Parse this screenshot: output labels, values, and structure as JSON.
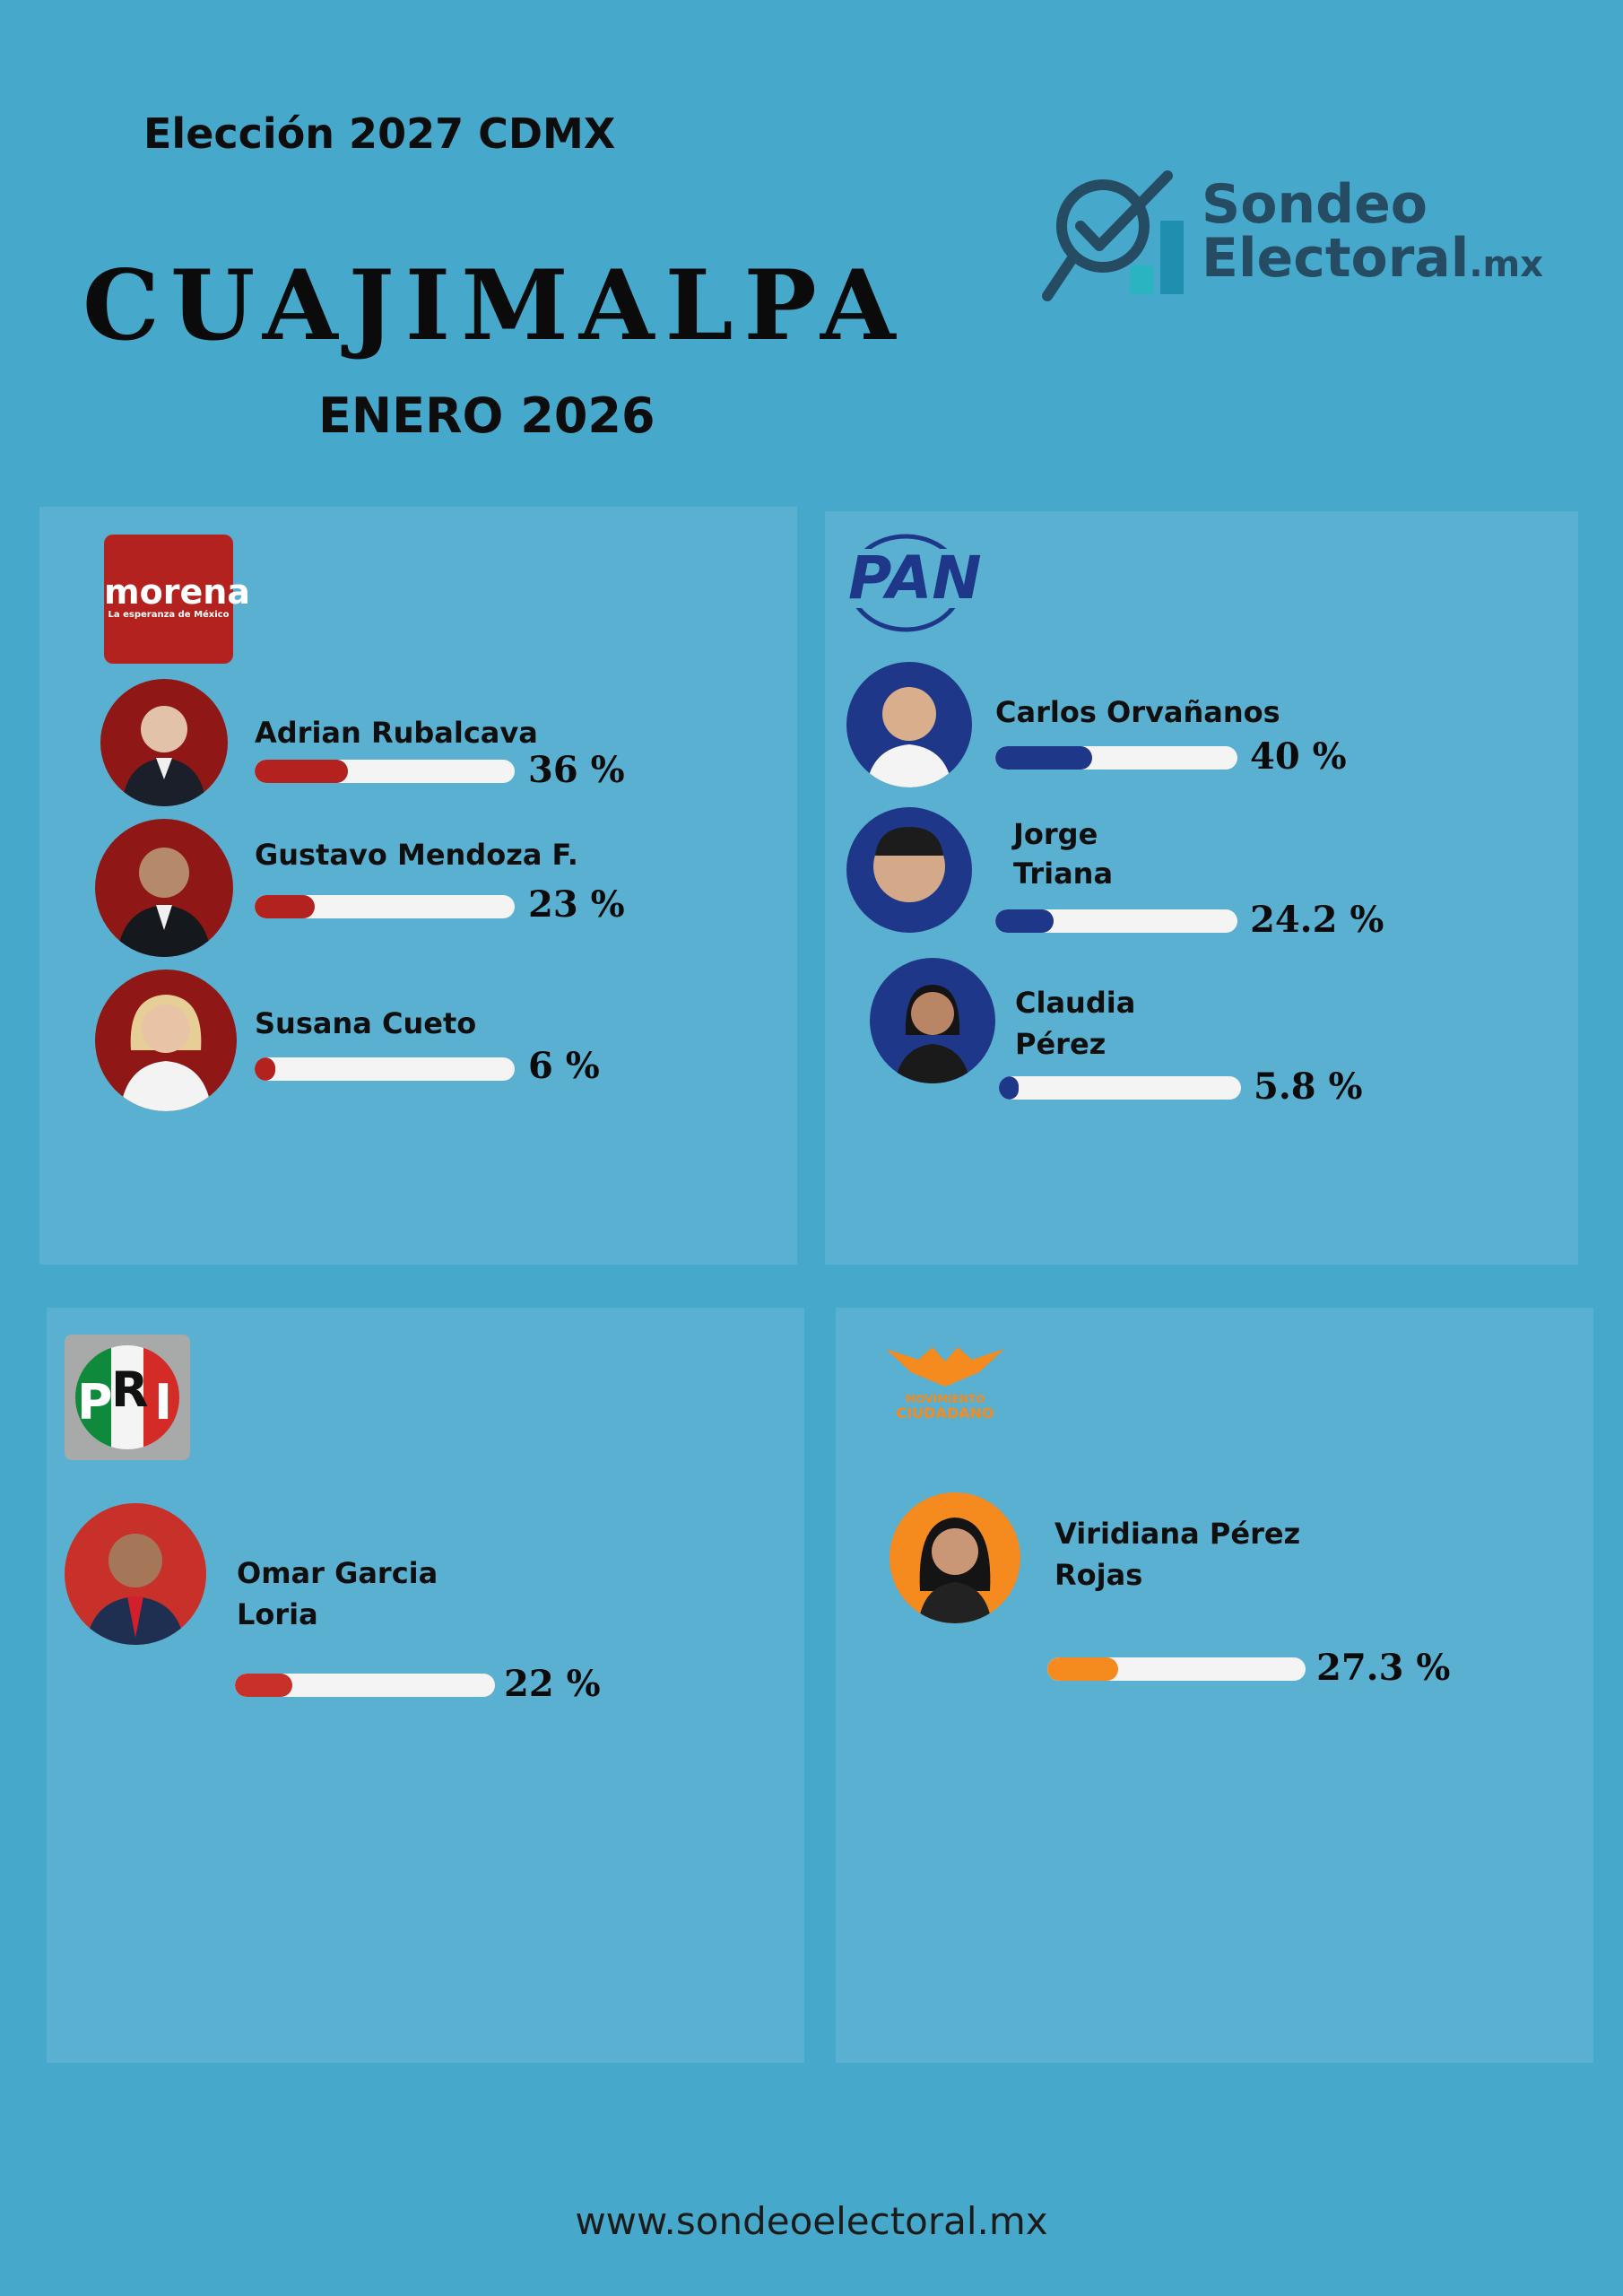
{
  "header": {
    "election": "Elección 2027 CDMX",
    "title": "CUAJIMALPA",
    "date": "ENERO 2026"
  },
  "brand": {
    "line1": "Sondeo",
    "line2": "Electoral",
    "line2_suffix": ".mx"
  },
  "colors": {
    "background": "#46a8cb",
    "panel": "#59b0d0",
    "morena": "#b3221f",
    "pan": "#1e3789",
    "pri": "#c8312a",
    "mc": "#f58a1f"
  },
  "panels": {
    "morena": {
      "logo_text": "morena",
      "logo_subtext": "La esperanza de México",
      "candidates": [
        {
          "name": "Adrian Rubalcava",
          "percent_label": "36 %",
          "value": 36
        },
        {
          "name": "Gustavo Mendoza F.",
          "percent_label": "23 %",
          "value": 23
        },
        {
          "name": "Susana Cueto",
          "percent_label": "6 %",
          "value": 6
        }
      ]
    },
    "pan": {
      "logo_text": "PAN",
      "candidates": [
        {
          "name": "Carlos Orvañanos",
          "percent_label": "40 %",
          "value": 40
        },
        {
          "name": "Jorge",
          "name2": "Triana",
          "percent_label": "24.2 %",
          "value": 24.2
        },
        {
          "name": "Claudia",
          "name2": "Pérez",
          "percent_label": "5.8 %",
          "value": 5.8
        }
      ]
    },
    "pri": {
      "logo_letters": [
        "P",
        "R",
        "I"
      ],
      "candidates": [
        {
          "name": "Omar Garcia",
          "name2": "Loria",
          "percent_label": "22 %",
          "value": 22
        }
      ]
    },
    "mc": {
      "logo_line1": "MOVIMIENTO",
      "logo_line2": "CIUDADANO",
      "candidates": [
        {
          "name": "Viridiana Pérez",
          "name2": "Rojas",
          "percent_label": "27.3 %",
          "value": 27.3
        }
      ]
    }
  },
  "footer": {
    "url": "www.sondeoelectoral.mx"
  }
}
